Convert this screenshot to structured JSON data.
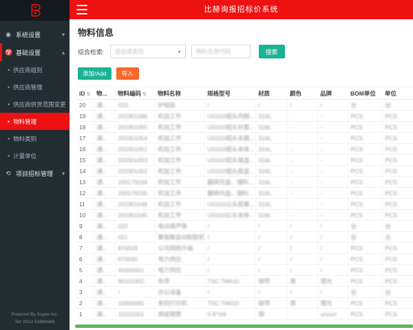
{
  "app": {
    "title": "比赫询报招标价系统"
  },
  "colors": {
    "accent_red": "#ed1111",
    "sidebar_bg": "#222d32",
    "teal": "#1ab394",
    "orange": "#f8672c",
    "green_scrollbar": "#5cb85c"
  },
  "sidebar": {
    "menu": [
      {
        "label": "系统设置"
      },
      {
        "label": "基础设置"
      },
      {
        "label": "供应商组别"
      },
      {
        "label": "供应商管理"
      },
      {
        "label": "供应商供货范围变更记录"
      },
      {
        "label": "物料管理",
        "active": true
      },
      {
        "label": "物料类别"
      },
      {
        "label": "计量单位"
      },
      {
        "label": "项目招标管理"
      }
    ],
    "footer_line1": "Powered By Suyee Inc.",
    "footer_line2": "Tel: 0512-53868988"
  },
  "page": {
    "title": "物料信息"
  },
  "search": {
    "label": "综合检索:",
    "category_placeholder": "请选择类别",
    "keyword_placeholder": "物料名称代码",
    "search_button": "搜索"
  },
  "toolbar": {
    "add_label": "添加/Add",
    "import_label": "导入"
  },
  "table": {
    "columns": [
      {
        "label": "ID",
        "sortable": true
      },
      {
        "label": "物...",
        "sortable": false
      },
      {
        "label": "物料编码",
        "sortable": true
      },
      {
        "label": "物料名称",
        "sortable": false
      },
      {
        "label": "规格型号",
        "sortable": false
      },
      {
        "label": "材质",
        "sortable": false
      },
      {
        "label": "颜色",
        "sortable": false
      },
      {
        "label": "品牌",
        "sortable": false
      },
      {
        "label": "BOM单位",
        "sortable": false
      },
      {
        "label": "单位",
        "sortable": false
      }
    ],
    "rows": [
      [
        "20",
        "通..",
        "023",
        "炉钳损",
        "/",
        "/",
        "/",
        "/",
        "台",
        "台"
      ],
      [
        "19",
        "通..",
        "202301096",
        "机加工件",
        "UG010铝头内圈...",
        "316L",
        "-",
        "-",
        "PCS",
        "PCS"
      ],
      [
        "18",
        "通..",
        "202301055",
        "机加工件",
        "UG010铝头衬套...",
        "316L",
        "-",
        "-",
        "PCS",
        "PCS"
      ],
      [
        "17",
        "通..",
        "202301054",
        "机加工件",
        "UG010铝头末圈...",
        "316L",
        "-",
        "-",
        "PCS",
        "PCS"
      ],
      [
        "16",
        "通..",
        "202301051",
        "机加工件",
        "UG010铝头本体...",
        "316L",
        "-",
        "-",
        "PCS",
        "PCS"
      ],
      [
        "15",
        "通..",
        "202301053",
        "机加工件",
        "UG010铝头端盖...",
        "316L",
        "-",
        "-",
        "PCS",
        "PCS"
      ],
      [
        "14",
        "通..",
        "202301052",
        "机加工件",
        "UG010铝头底盖...",
        "316L",
        "-",
        "-",
        "PCS",
        "PCS"
      ],
      [
        "13",
        "通..",
        "200175034",
        "机加工件",
        "翻转托盘、储料...",
        "316L",
        "-",
        "-",
        "PCS",
        "PCS"
      ],
      [
        "12",
        "通..",
        "200175035",
        "机加工件",
        "翻转托盘、储料...",
        "316L",
        "-",
        "-",
        "PCS",
        "PCS"
      ],
      [
        "11",
        "通..",
        "202301548",
        "机加工件",
        "UG010公头底塞...",
        "316L",
        "-",
        "-",
        "PCS",
        "PCS"
      ],
      [
        "10",
        "通..",
        "202301545",
        "机加工件",
        "UG010公头本体...",
        "316L",
        "-",
        "-",
        "PCS",
        "PCS"
      ],
      [
        "9",
        "通..",
        "022",
        "电动葫芦等",
        "/",
        "/",
        "/",
        "/",
        "台",
        "台"
      ],
      [
        "8",
        "通..",
        "021",
        "聚氨酯自动配胶机",
        "/",
        "/",
        "/",
        "/",
        "台",
        "台"
      ],
      [
        "7",
        "通..",
        "870029",
        "公司网络升级",
        "/",
        "/",
        "/",
        "/",
        "PCS",
        "PCS"
      ],
      [
        "6",
        "通..",
        "870030",
        "电力供应",
        "/",
        "/",
        "/",
        "/",
        "PCS",
        "PCS"
      ],
      [
        "5",
        "通..",
        "40000001",
        "电力供应",
        "/",
        "/",
        "/",
        "/",
        "PCS",
        "PCS"
      ],
      [
        "4",
        "通..",
        "80101902",
        "色带",
        "TSC TM610",
        "碳带",
        "黑",
        "理光",
        "PCS",
        "PCS"
      ],
      [
        "3",
        "通..",
        "/",
        "办公设备",
        "/",
        "/",
        "/",
        "/",
        "台",
        "台"
      ],
      [
        "2",
        "通..",
        "10000065",
        "条码打印机",
        "TSC TM610",
        "碳带",
        "黑",
        "理光",
        "PCS",
        "PCS"
      ],
      [
        "1",
        "通..",
        "10101001",
        "焊接钢管",
        "0.8*1M",
        "钢",
        "",
        "unoun",
        "PCS",
        "PCS"
      ]
    ]
  }
}
